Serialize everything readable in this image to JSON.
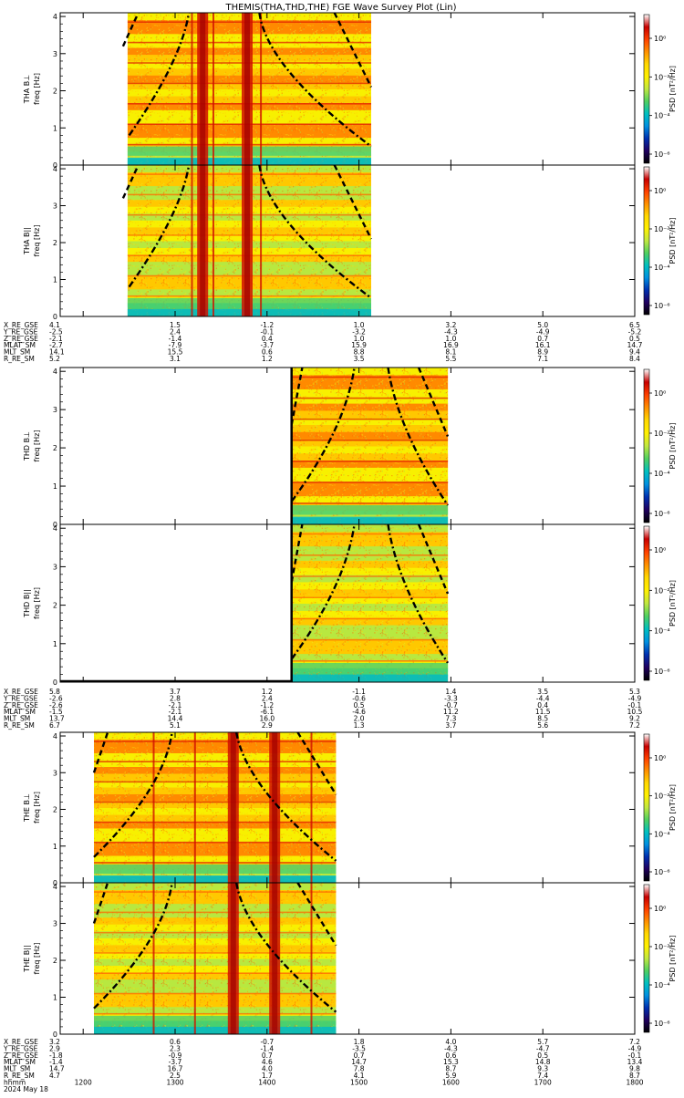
{
  "title": "THEMIS(THA,THD,THE) FGE Wave Survey Plot (Lin)",
  "colorbar": {
    "label": "PSD [nT²/Hz]",
    "ticks": [
      "10⁰",
      "10⁻²",
      "10⁻⁴",
      "10⁻⁶"
    ],
    "colors": [
      "#ffffff",
      "#c80000",
      "#ff4000",
      "#ff9000",
      "#ffd800",
      "#fff000",
      "#c0e840",
      "#50d060",
      "#00c0c0",
      "#0090e0",
      "#0030b0",
      "#200060",
      "#000000"
    ]
  },
  "chart_data": {
    "type": "heatmap",
    "x_axis": {
      "unit": "hhmm",
      "date": "2024 May 18",
      "ticks": [
        "1200",
        "1300",
        "1400",
        "1500",
        "1600",
        "1700",
        "1800"
      ],
      "range": [
        "1145",
        "1800"
      ]
    },
    "y_axis": {
      "ticks": [
        "0",
        "1",
        "2",
        "3",
        "4"
      ],
      "range": [
        0,
        4.1
      ]
    },
    "panels": [
      {
        "probe": "THA",
        "ylabel": "THA B⊥",
        "ylabel2": "freq [Hz]",
        "data_start": "1229",
        "data_end": "1508",
        "comp": "perp",
        "bands": [
          "1318",
          "1347"
        ],
        "spikes": [
          "1311",
          "1325",
          "1356"
        ]
      },
      {
        "probe": "THA",
        "ylabel": "THA B||",
        "ylabel2": "freq [Hz]",
        "data_start": "1229",
        "data_end": "1508",
        "comp": "par",
        "bands": [
          "1318",
          "1347"
        ],
        "spikes": [
          "1311",
          "1325",
          "1356"
        ]
      },
      {
        "probe": "THD",
        "ylabel": "THD B⊥",
        "ylabel2": "freq [Hz]",
        "data_start": "1416",
        "data_end": "1558",
        "comp": "perp",
        "bands": [],
        "spikes": []
      },
      {
        "probe": "THD",
        "ylabel": "THD B||",
        "ylabel2": "freq [Hz]",
        "data_start": "1416",
        "data_end": "1558",
        "comp": "par",
        "bands": [],
        "spikes": []
      },
      {
        "probe": "THE",
        "ylabel": "THE B⊥",
        "ylabel2": "freq [Hz]",
        "data_start": "1207",
        "data_end": "1445",
        "comp": "perp",
        "bands": [
          "1338",
          "1405"
        ],
        "spikes": [
          "1246",
          "1313",
          "1429"
        ]
      },
      {
        "probe": "THE",
        "ylabel": "THE B||",
        "ylabel2": "freq [Hz]",
        "data_start": "1207",
        "data_end": "1445",
        "comp": "par",
        "bands": [
          "1338",
          "1405"
        ],
        "spikes": [
          "1246",
          "1313",
          "1429"
        ]
      }
    ],
    "cyclotron_curves": [
      {
        "panel_group": "THA",
        "curves": [
          {
            "style": "dash",
            "points": [
              [
                "1226",
                3.2
              ],
              [
                "1236",
                4.1
              ]
            ]
          },
          {
            "style": "dashdot",
            "points": [
              [
                "1230",
                0.8
              ],
              [
                "1304",
                2.8
              ],
              [
                "1309",
                4.1
              ]
            ]
          },
          {
            "style": "dashdot",
            "points": [
              [
                "1355",
                4.1
              ],
              [
                "1400",
                2.6
              ],
              [
                "1508",
                0.5
              ]
            ]
          },
          {
            "style": "dash",
            "points": [
              [
                "1444",
                4.1
              ],
              [
                "1508",
                2.1
              ]
            ]
          }
        ]
      },
      {
        "panel_group": "THD",
        "curves": [
          {
            "style": "dash",
            "points": [
              [
                "1416",
                2.6
              ],
              [
                "1423",
                4.1
              ]
            ]
          },
          {
            "style": "dashdot",
            "points": [
              [
                "1416",
                0.6
              ],
              [
                "1451",
                2.5
              ],
              [
                "1457",
                4.1
              ]
            ]
          },
          {
            "style": "dashdot",
            "points": [
              [
                "1519",
                4.1
              ],
              [
                "1525",
                2.5
              ],
              [
                "1558",
                0.5
              ]
            ]
          },
          {
            "style": "dash",
            "points": [
              [
                "1539",
                4.1
              ],
              [
                "1558",
                2.3
              ]
            ]
          }
        ]
      },
      {
        "panel_group": "THE",
        "curves": [
          {
            "style": "dash",
            "points": [
              [
                "1207",
                3.0
              ],
              [
                "1216",
                4.1
              ]
            ]
          },
          {
            "style": "dashdot",
            "points": [
              [
                "1207",
                0.7
              ],
              [
                "1253",
                2.6
              ],
              [
                "1258",
                4.1
              ]
            ]
          },
          {
            "style": "dashdot",
            "points": [
              [
                "1340",
                4.1
              ],
              [
                "1346",
                2.6
              ],
              [
                "1445",
                0.6
              ]
            ]
          },
          {
            "style": "dash",
            "points": [
              [
                "1420",
                4.1
              ],
              [
                "1445",
                2.4
              ]
            ]
          }
        ]
      }
    ]
  },
  "orbit_tables": [
    {
      "rows": [
        {
          "label": "X_RE_GSE",
          "values": [
            "4.1",
            "1.5",
            "-1.2",
            "1.0",
            "3.2",
            "5.0",
            "6.5"
          ]
        },
        {
          "label": "Y_RE_GSE",
          "values": [
            "-2.5",
            "2.4",
            "-0.1",
            "-3.2",
            "-4.3",
            "-4.9",
            "-5.2"
          ]
        },
        {
          "label": "Z_RE_GSE",
          "values": [
            "-2.1",
            "-1.4",
            "0.4",
            "1.0",
            "1.0",
            "0.7",
            "0.5"
          ]
        },
        {
          "label": "MLAT_SM",
          "values": [
            "-2.7",
            "-7.9",
            "-3.7",
            "15.9",
            "16.9",
            "16.1",
            "14.7"
          ]
        },
        {
          "label": "MLT_SM",
          "values": [
            "14.1",
            "15.5",
            "0.6",
            "8.8",
            "8.1",
            "8.9",
            "9.4"
          ]
        },
        {
          "label": "R_RE_SM",
          "values": [
            "5.2",
            "3.1",
            "1.2",
            "3.5",
            "5.5",
            "7.1",
            "8.4"
          ]
        }
      ]
    },
    {
      "rows": [
        {
          "label": "X_RE_GSE",
          "values": [
            "5.8",
            "3.7",
            "1.2",
            "-1.1",
            "1.4",
            "3.5",
            "5.3"
          ]
        },
        {
          "label": "Y_RE_GSE",
          "values": [
            "-2.6",
            "2.8",
            "2.4",
            "-0.6",
            "-3.3",
            "-4.4",
            "-4.9"
          ]
        },
        {
          "label": "Z_RE_GSE",
          "values": [
            "-2.6",
            "-2.1",
            "-1.2",
            "0.5",
            "-0.7",
            "0.4",
            "-0.1"
          ]
        },
        {
          "label": "MLAT_SM",
          "values": [
            "-1.5",
            "-2.1",
            "-6.1",
            "-4.6",
            "11.2",
            "11.5",
            "10.5"
          ]
        },
        {
          "label": "MLT_SM",
          "values": [
            "13.7",
            "14.4",
            "16.0",
            "2.0",
            "7.3",
            "8.5",
            "9.2"
          ]
        },
        {
          "label": "R_RE_SM",
          "values": [
            "6.7",
            "5.1",
            "2.9",
            "1.3",
            "3.7",
            "5.6",
            "7.2"
          ]
        }
      ]
    },
    {
      "rows": [
        {
          "label": "X_RE_GSE",
          "values": [
            "3.2",
            "0.6",
            "-0.7",
            "1.8",
            "4.0",
            "5.7",
            "7.2"
          ]
        },
        {
          "label": "Y_RE_GSE",
          "values": [
            "2.9",
            "2.3",
            "-1.4",
            "-3.5",
            "-4.3",
            "-4.7",
            "-4.9"
          ]
        },
        {
          "label": "Z_RE_GSE",
          "values": [
            "-1.8",
            "-0.9",
            "0.7",
            "0.7",
            "0.6",
            "0.5",
            "-0.1"
          ]
        },
        {
          "label": "MLAT_SM",
          "values": [
            "-1.4",
            "-3.7",
            "4.6",
            "14.7",
            "15.3",
            "14.8",
            "13.4"
          ]
        },
        {
          "label": "MLT_SM",
          "values": [
            "14.7",
            "16.7",
            "4.0",
            "7.8",
            "8.7",
            "9.3",
            "9.8"
          ]
        },
        {
          "label": "R_RE_SM",
          "values": [
            "4.7",
            "2.5",
            "1.7",
            "4.1",
            "5.9",
            "7.4",
            "8.7"
          ]
        }
      ]
    }
  ],
  "footer": {
    "time_label": "hhmm",
    "date_label": "2024 May 18"
  }
}
